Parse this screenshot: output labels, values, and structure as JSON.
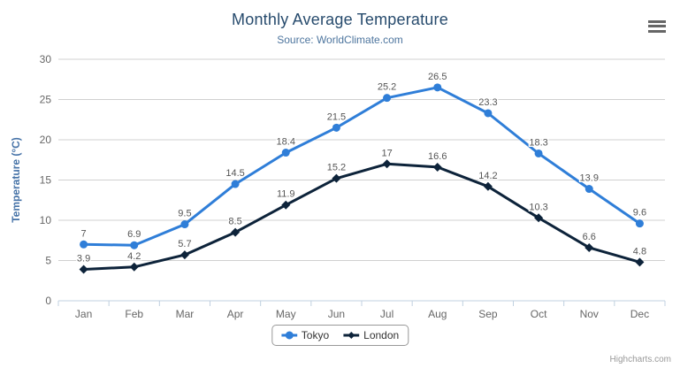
{
  "chart": {
    "title": "Monthly Average Temperature",
    "subtitle": "Source: WorldClimate.com",
    "credits": "Highcharts.com"
  },
  "chart_data": {
    "type": "line",
    "title": "Monthly Average Temperature",
    "subtitle": "Source: WorldClimate.com",
    "categories": [
      "Jan",
      "Feb",
      "Mar",
      "Apr",
      "May",
      "Jun",
      "Jul",
      "Aug",
      "Sep",
      "Oct",
      "Nov",
      "Dec"
    ],
    "series": [
      {
        "name": "Tokyo",
        "color": "#2f7ed8",
        "marker": "circle",
        "values": [
          7,
          6.9,
          9.5,
          14.5,
          18.4,
          21.5,
          25.2,
          26.5,
          23.3,
          18.3,
          13.9,
          9.6
        ]
      },
      {
        "name": "London",
        "color": "#0d233a",
        "marker": "diamond",
        "values": [
          3.9,
          4.2,
          5.7,
          8.5,
          11.9,
          15.2,
          17,
          16.6,
          14.2,
          10.3,
          6.6,
          4.8
        ]
      }
    ],
    "xlabel": "",
    "ylabel": "Temperature (°C)",
    "ylim": [
      0,
      30
    ],
    "ytick_interval": 5,
    "grid": true,
    "data_labels": true,
    "legend_position": "bottom"
  },
  "colors": {
    "title": "#274b6d",
    "subtitle": "#4d759e",
    "axis_label": "#666666",
    "axis_title": "#4572a7",
    "gridline": "#d0d0d0",
    "axis_line": "#c0d0e0",
    "data_label": "#555555",
    "legend_border": "#999999",
    "legend_text": "#333333",
    "credits": "#999999",
    "menu_icon": "#666666"
  }
}
